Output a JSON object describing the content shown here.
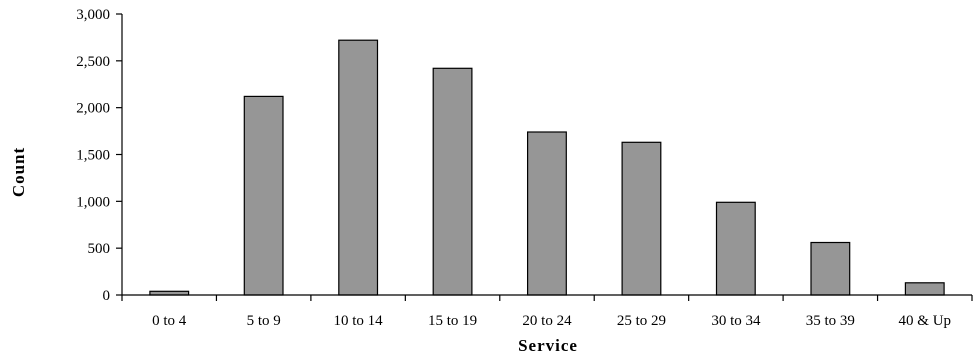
{
  "chart_data": {
    "type": "bar",
    "categories": [
      "0 to 4",
      "5 to 9",
      "10 to 14",
      "15 to 19",
      "20 to 24",
      "25 to 29",
      "30 to 34",
      "35 to 39",
      "40 & Up"
    ],
    "values": [
      40,
      2120,
      2720,
      2420,
      1740,
      1630,
      990,
      560,
      130
    ],
    "xlabel": "Service",
    "ylabel": "Count",
    "ylim": [
      0,
      3000
    ],
    "yticks": [
      0,
      500,
      1000,
      1500,
      2000,
      2500,
      3000
    ],
    "ytick_labels": [
      "0",
      "500",
      "1,000",
      "1,500",
      "2,000",
      "2,500",
      "3,000"
    ],
    "grid": false,
    "legend": "none",
    "bar_color": "#969696",
    "edge_color": "#000000"
  }
}
